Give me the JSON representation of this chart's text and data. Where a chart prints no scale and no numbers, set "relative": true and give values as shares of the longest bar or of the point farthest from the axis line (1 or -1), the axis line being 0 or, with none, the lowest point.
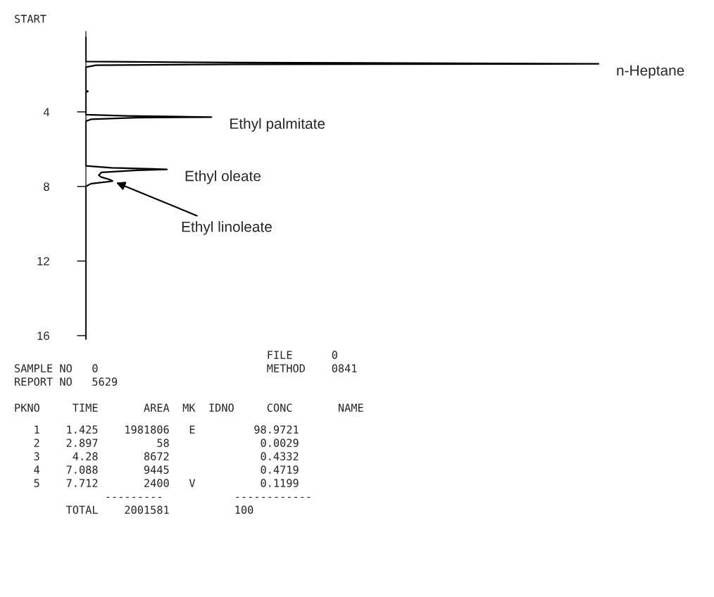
{
  "chart_data": {
    "type": "line",
    "orientation": "horizontal",
    "relative": true,
    "title": "START",
    "x": [
      0,
      1.3,
      1.36,
      1.4,
      1.425,
      1.45,
      1.5,
      1.6,
      2.85,
      2.897,
      2.95,
      4.15,
      4.22,
      4.26,
      4.28,
      4.31,
      4.4,
      4.5,
      6.9,
      7.0,
      7.06,
      7.088,
      7.13,
      7.25,
      7.4,
      7.5,
      7.62,
      7.68,
      7.712,
      7.76,
      7.85,
      8.0,
      16.2
    ],
    "series": [
      {
        "color": "#000000",
        "values": [
          0,
          0,
          0.3,
          0.8,
          1,
          0.3,
          0.02,
          0,
          0,
          0.004,
          0,
          0,
          0.08,
          0.2,
          0.245,
          0.1,
          0.01,
          0,
          0,
          0.05,
          0.13,
          0.158,
          0.1,
          0.03,
          0.025,
          0.03,
          0.045,
          0.05,
          0.052,
          0.04,
          0.01,
          0,
          0
        ]
      }
    ],
    "ylim": [
      16.2,
      -0.3
    ],
    "yticks": [
      4,
      8,
      12,
      16
    ],
    "tick_labels": "y",
    "grid": false,
    "annotations": [
      {
        "text": "n-Heptane",
        "x": 1,
        "y": 1.425
      },
      {
        "text": "Ethyl palmitate",
        "x": 0.245,
        "y": 4.28
      },
      {
        "text": "Ethyl oleate",
        "x": 0.158,
        "y": 7.088
      },
      {
        "text": "Ethyl linoleate",
        "x": 0.052,
        "y": 7.712
      },
      "                                       FILE      0",
      "SAMPLE NO   0                          METHOD    0841",
      "REPORT NO   5629",
      "PKNO     TIME       AREA  MK  IDNO     CONC       NAME",
      "   1    1.425    1981806   E         98.9721",
      "   2    2.897         58              0.0029",
      "   3     4.28       8672              0.4332",
      "   4    7.088       9445              0.4719",
      "   5    7.712       2400   V          0.1199",
      "              ---------           ------------",
      "        TOTAL    2001581          100"
    ]
  }
}
